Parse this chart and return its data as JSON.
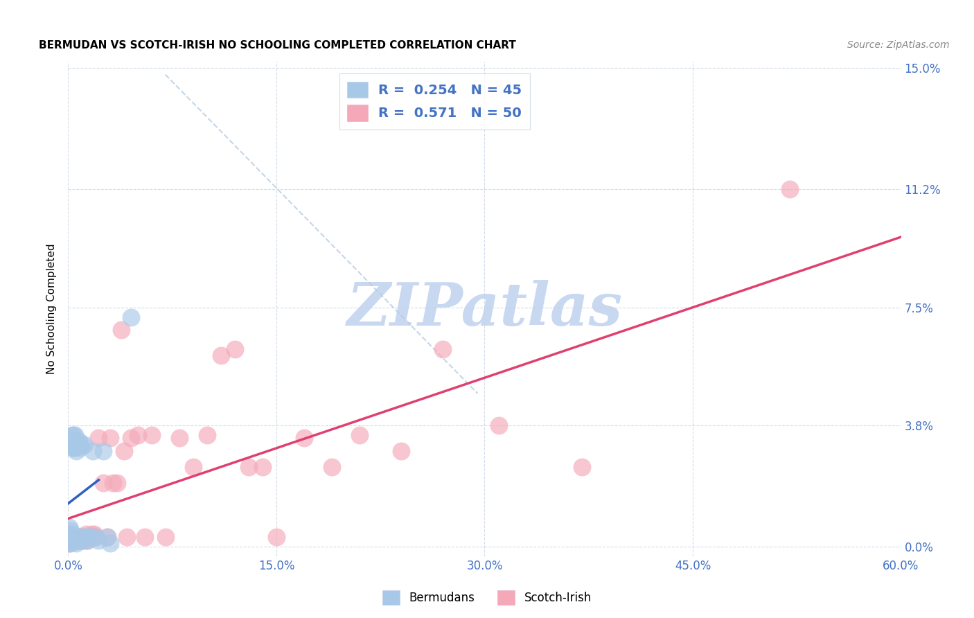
{
  "title": "BERMUDAN VS SCOTCH-IRISH NO SCHOOLING COMPLETED CORRELATION CHART",
  "source": "Source: ZipAtlas.com",
  "ylabel": "No Schooling Completed",
  "xlabel_ticks": [
    "0.0%",
    "15.0%",
    "30.0%",
    "45.0%",
    "60.0%"
  ],
  "ytick_labels": [
    "0.0%",
    "3.8%",
    "7.5%",
    "11.2%",
    "15.0%"
  ],
  "xlim": [
    0,
    0.6
  ],
  "ylim": [
    -0.003,
    0.152
  ],
  "xticks": [
    0.0,
    0.15,
    0.3,
    0.45,
    0.6
  ],
  "yticks": [
    0.0,
    0.038,
    0.075,
    0.112,
    0.15
  ],
  "bermudan_color": "#a8c8e8",
  "scotch_color": "#f4a8b8",
  "bermudan_line_color": "#3060c0",
  "scotch_line_color": "#e04070",
  "dashed_line_color": "#b8cce0",
  "watermark": "ZIPatlas",
  "watermark_color": "#c8d8f0",
  "title_fontsize": 11,
  "source_fontsize": 10,
  "legend_fontsize": 14,
  "bermudans_x": [
    0.0005,
    0.001,
    0.001,
    0.001,
    0.002,
    0.002,
    0.002,
    0.002,
    0.003,
    0.003,
    0.003,
    0.003,
    0.003,
    0.004,
    0.004,
    0.004,
    0.004,
    0.005,
    0.005,
    0.005,
    0.005,
    0.006,
    0.006,
    0.006,
    0.007,
    0.007,
    0.008,
    0.008,
    0.009,
    0.009,
    0.01,
    0.01,
    0.011,
    0.012,
    0.013,
    0.014,
    0.015,
    0.016,
    0.018,
    0.02,
    0.022,
    0.025,
    0.028,
    0.03,
    0.045
  ],
  "bermudans_y": [
    0.001,
    0.002,
    0.004,
    0.006,
    0.001,
    0.003,
    0.005,
    0.032,
    0.002,
    0.004,
    0.031,
    0.033,
    0.035,
    0.002,
    0.031,
    0.033,
    0.035,
    0.002,
    0.031,
    0.033,
    0.035,
    0.001,
    0.03,
    0.032,
    0.002,
    0.033,
    0.002,
    0.033,
    0.003,
    0.031,
    0.002,
    0.032,
    0.003,
    0.032,
    0.003,
    0.002,
    0.003,
    0.003,
    0.03,
    0.003,
    0.002,
    0.03,
    0.003,
    0.001,
    0.072
  ],
  "scotch_x": [
    0.001,
    0.002,
    0.003,
    0.004,
    0.005,
    0.006,
    0.007,
    0.008,
    0.009,
    0.01,
    0.011,
    0.012,
    0.013,
    0.014,
    0.015,
    0.016,
    0.017,
    0.018,
    0.019,
    0.02,
    0.022,
    0.025,
    0.028,
    0.03,
    0.032,
    0.035,
    0.038,
    0.04,
    0.042,
    0.045,
    0.05,
    0.055,
    0.06,
    0.07,
    0.08,
    0.09,
    0.1,
    0.11,
    0.12,
    0.13,
    0.14,
    0.15,
    0.17,
    0.19,
    0.21,
    0.24,
    0.27,
    0.31,
    0.37,
    0.52
  ],
  "scotch_y": [
    0.001,
    0.002,
    0.003,
    0.002,
    0.003,
    0.002,
    0.003,
    0.002,
    0.003,
    0.002,
    0.003,
    0.002,
    0.004,
    0.002,
    0.003,
    0.003,
    0.004,
    0.003,
    0.004,
    0.003,
    0.034,
    0.02,
    0.003,
    0.034,
    0.02,
    0.02,
    0.068,
    0.03,
    0.003,
    0.034,
    0.035,
    0.003,
    0.035,
    0.003,
    0.034,
    0.025,
    0.035,
    0.06,
    0.062,
    0.025,
    0.025,
    0.003,
    0.034,
    0.025,
    0.035,
    0.03,
    0.062,
    0.038,
    0.025,
    0.112
  ]
}
